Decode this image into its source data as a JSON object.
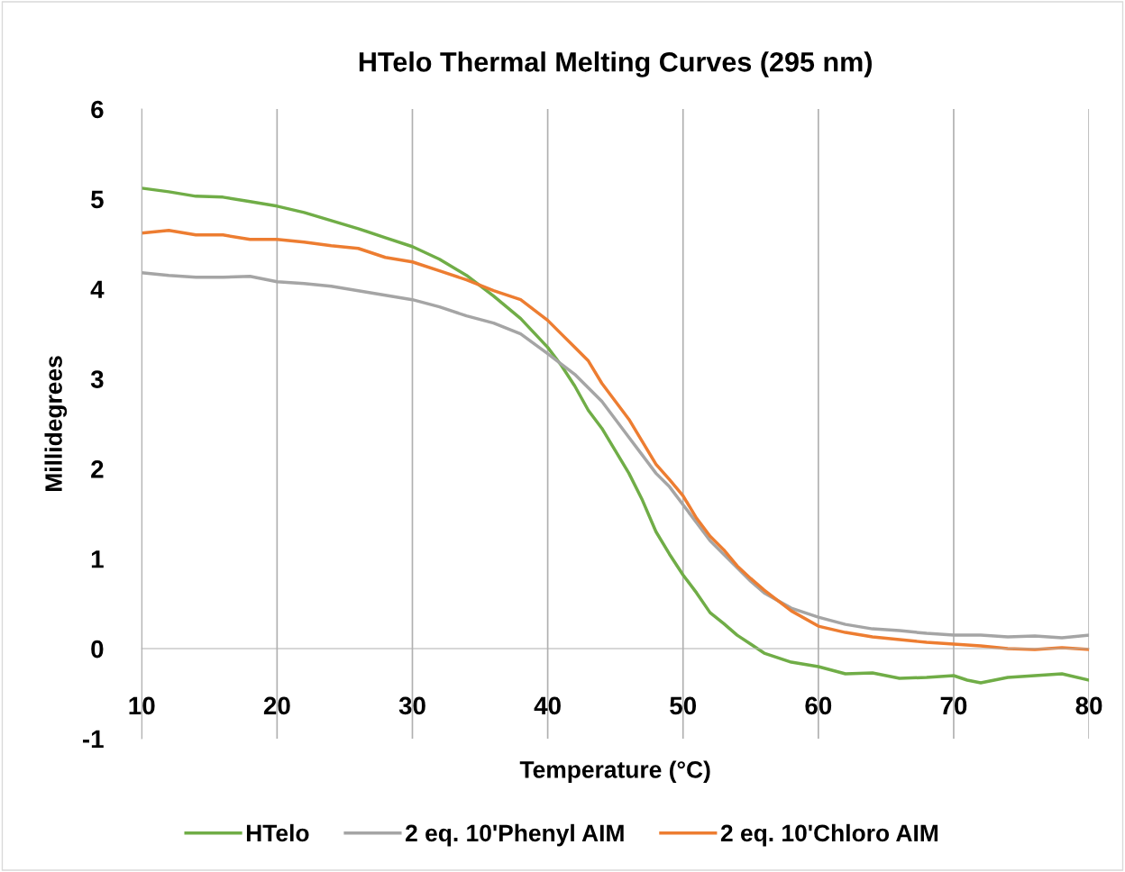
{
  "chart_data": {
    "type": "line",
    "title": "HTelo Thermal Melting Curves (295 nm)",
    "xlabel": "Temperature (°C)",
    "ylabel": "Millidegrees",
    "xlim": [
      10,
      80
    ],
    "ylim": [
      -1,
      6
    ],
    "xticks": [
      10,
      20,
      30,
      40,
      50,
      60,
      70,
      80
    ],
    "yticks": [
      -1,
      0,
      1,
      2,
      3,
      4,
      5,
      6
    ],
    "grid": "x",
    "legend": "bottom",
    "marker": "none",
    "line_style": "solid",
    "series": [
      {
        "name": "HTelo",
        "color": "#70ad47",
        "x": [
          10,
          12,
          14,
          16,
          18,
          20,
          22,
          24,
          26,
          28,
          30,
          32,
          34,
          36,
          38,
          40,
          41,
          42,
          43,
          44,
          45,
          46,
          47,
          48,
          49,
          50,
          51,
          52,
          53,
          54,
          55,
          56,
          58,
          60,
          62,
          64,
          66,
          68,
          70,
          71,
          72,
          74,
          76,
          78,
          80
        ],
        "values": [
          5.12,
          5.08,
          5.03,
          5.02,
          4.97,
          4.92,
          4.85,
          4.76,
          4.67,
          4.57,
          4.47,
          4.33,
          4.15,
          3.92,
          3.67,
          3.35,
          3.15,
          2.92,
          2.65,
          2.45,
          2.2,
          1.95,
          1.65,
          1.3,
          1.05,
          0.82,
          0.62,
          0.4,
          0.28,
          0.15,
          0.05,
          -0.05,
          -0.15,
          -0.2,
          -0.28,
          -0.27,
          -0.33,
          -0.32,
          -0.3,
          -0.35,
          -0.38,
          -0.32,
          -0.3,
          -0.28,
          -0.35
        ]
      },
      {
        "name": "2 eq. 10'Phenyl AIM",
        "color": "#a5a5a5",
        "x": [
          10,
          12,
          14,
          16,
          18,
          20,
          22,
          24,
          26,
          28,
          30,
          32,
          34,
          36,
          38,
          40,
          42,
          43,
          44,
          45,
          46,
          47,
          48,
          49,
          50,
          51,
          52,
          53,
          54,
          55,
          56,
          58,
          60,
          62,
          64,
          66,
          68,
          70,
          72,
          74,
          76,
          78,
          80
        ],
        "values": [
          4.18,
          4.15,
          4.13,
          4.13,
          4.14,
          4.08,
          4.06,
          4.03,
          3.98,
          3.93,
          3.88,
          3.8,
          3.7,
          3.62,
          3.5,
          3.28,
          3.05,
          2.9,
          2.75,
          2.55,
          2.35,
          2.15,
          1.95,
          1.8,
          1.6,
          1.4,
          1.2,
          1.05,
          0.9,
          0.75,
          0.62,
          0.45,
          0.35,
          0.27,
          0.22,
          0.2,
          0.17,
          0.15,
          0.15,
          0.13,
          0.14,
          0.12,
          0.15
        ]
      },
      {
        "name": "2 eq. 10'Chloro AIM",
        "color": "#ed7d31",
        "x": [
          10,
          12,
          14,
          16,
          18,
          20,
          22,
          24,
          26,
          28,
          30,
          32,
          34,
          36,
          38,
          40,
          41,
          42,
          43,
          44,
          45,
          46,
          47,
          48,
          49,
          50,
          51,
          52,
          53,
          54,
          55,
          56,
          58,
          60,
          62,
          64,
          66,
          68,
          70,
          72,
          74,
          76,
          78,
          80
        ],
        "values": [
          4.62,
          4.65,
          4.6,
          4.6,
          4.55,
          4.55,
          4.52,
          4.48,
          4.45,
          4.35,
          4.3,
          4.2,
          4.1,
          3.98,
          3.88,
          3.65,
          3.5,
          3.35,
          3.2,
          2.95,
          2.75,
          2.55,
          2.3,
          2.05,
          1.88,
          1.7,
          1.45,
          1.25,
          1.1,
          0.92,
          0.78,
          0.65,
          0.42,
          0.25,
          0.18,
          0.13,
          0.1,
          0.07,
          0.05,
          0.03,
          0.0,
          -0.01,
          0.01,
          -0.01
        ]
      }
    ]
  }
}
